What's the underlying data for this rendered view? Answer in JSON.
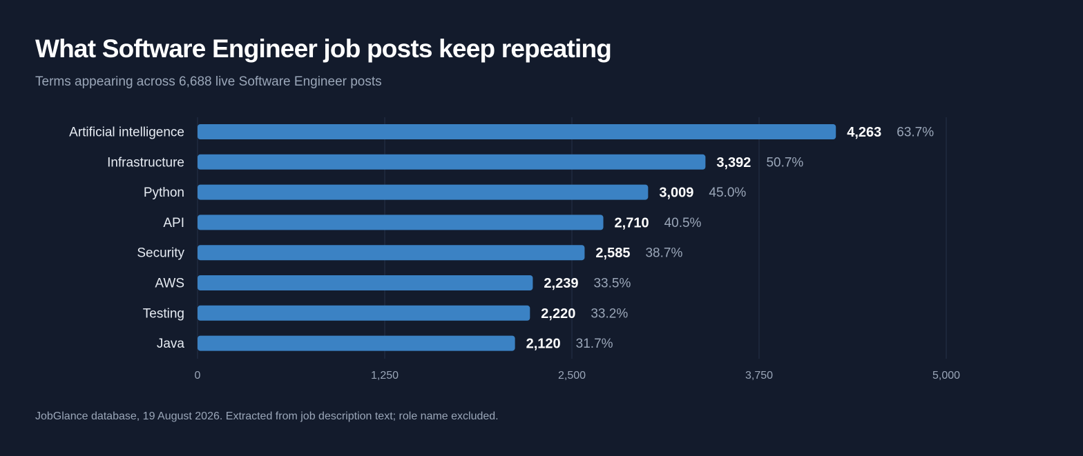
{
  "header": {
    "title": "What Software Engineer job posts keep repeating",
    "subtitle": "Terms appearing across 6,688 live Software Engineer posts"
  },
  "footer": {
    "source": "JobGlance database, 19 August 2026. Extracted from job description text; role name excluded."
  },
  "colors": {
    "background": "#131b2c",
    "bar": "#3b82c4",
    "gridline": "#253047",
    "category_label": "#e6ebf2",
    "value_label": "#ffffff",
    "percent_label": "#9aa6b8",
    "tick_label": "#9aa6b8"
  },
  "chart_data": {
    "type": "bar",
    "orientation": "horizontal",
    "categories": [
      "Artificial intelligence",
      "Infrastructure",
      "Python",
      "API",
      "Security",
      "AWS",
      "Testing",
      "Java"
    ],
    "values": [
      4263,
      3392,
      3009,
      2710,
      2585,
      2239,
      2220,
      2120
    ],
    "value_labels": [
      "4,263",
      "3,392",
      "3,009",
      "2,710",
      "2,585",
      "2,239",
      "2,220",
      "2,120"
    ],
    "percent_labels": [
      "63.7%",
      "50.7%",
      "45.0%",
      "40.5%",
      "38.7%",
      "33.5%",
      "33.2%",
      "31.7%"
    ],
    "xlim": [
      0,
      5000
    ],
    "x_ticks": [
      0,
      1250,
      2500,
      3750,
      5000
    ],
    "x_tick_labels": [
      "0",
      "1,250",
      "2,500",
      "3,750",
      "5,000"
    ],
    "grid": true
  }
}
